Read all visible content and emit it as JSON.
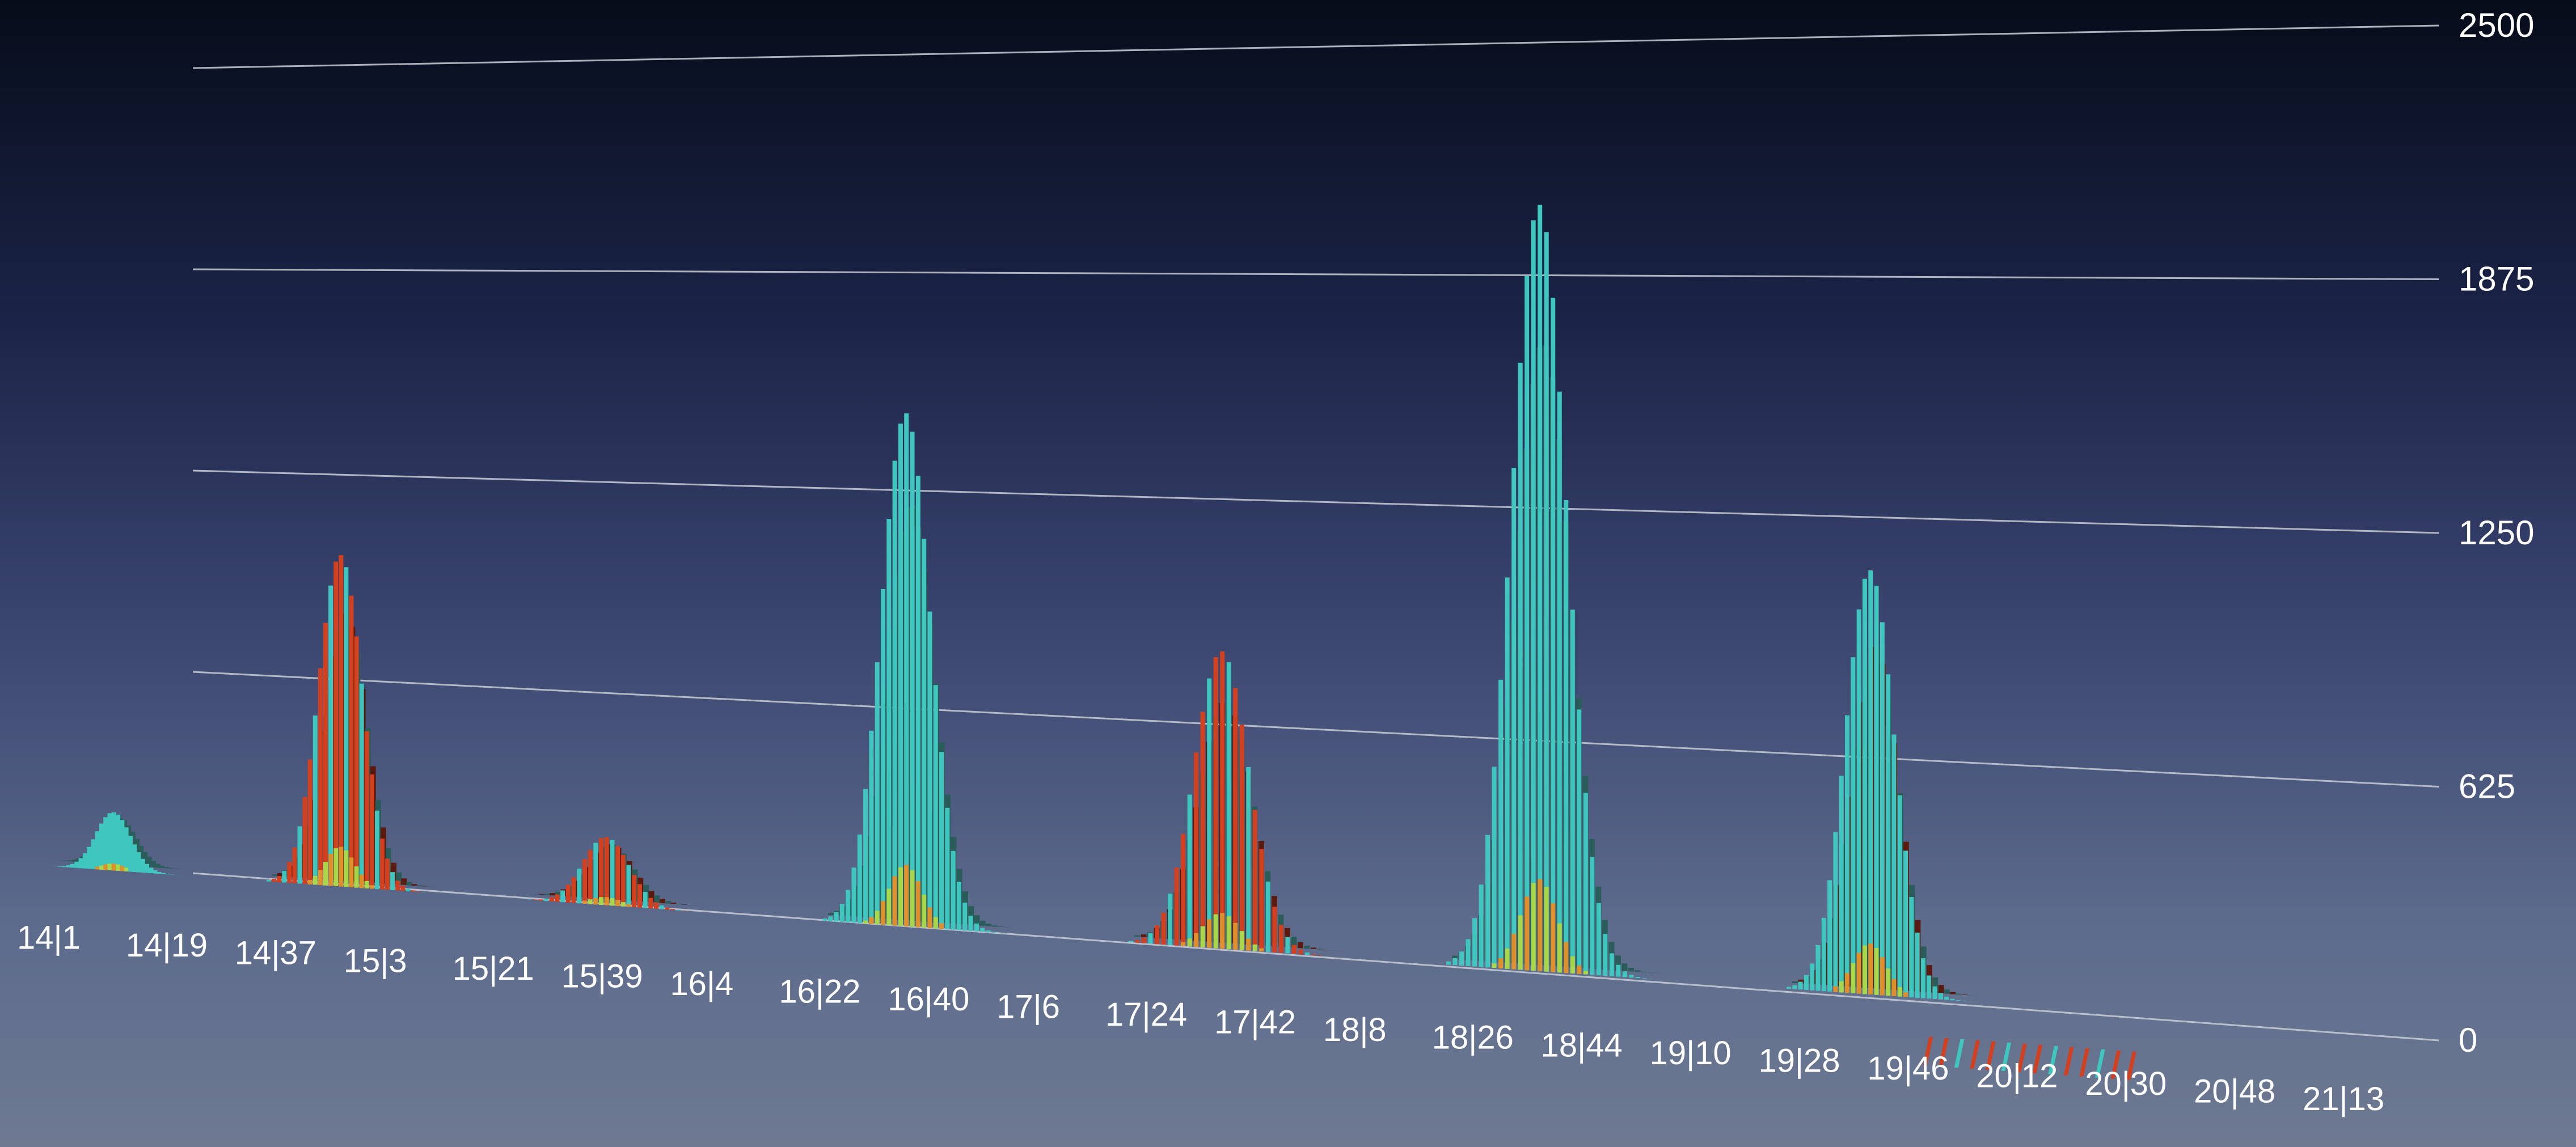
{
  "chart_data": {
    "type": "bar",
    "title": "",
    "xlabel": "",
    "ylabel": "",
    "ylim": [
      0,
      2500
    ],
    "yticks": [
      "0",
      "625",
      "1250",
      "1875",
      "2500"
    ],
    "grid": true,
    "x_tick_labels": [
      "14|1",
      "14|19",
      "14|37",
      "15|3",
      "15|21",
      "15|39",
      "16|4",
      "16|22",
      "16|40",
      "17|6",
      "17|24",
      "17|42",
      "18|8",
      "18|26",
      "18|44",
      "19|10",
      "19|28",
      "19|46",
      "20|12",
      "20|30",
      "20|48",
      "21|13"
    ],
    "clusters": [
      {
        "label": "14",
        "peak": 180,
        "scale_red": 0.05
      },
      {
        "label": "15",
        "peak": 1000,
        "scale_red": 1.25
      },
      {
        "label": "16",
        "peak": 200,
        "scale_red": 1.8
      },
      {
        "label": "17",
        "peak": 1460,
        "scale_red": 0.05
      },
      {
        "label": "18",
        "peak": 820,
        "scale_red": 1.5
      },
      {
        "label": "19",
        "peak": 2050,
        "scale_red": 0.02
      },
      {
        "label": "20",
        "peak": 1100,
        "scale_red": 0.6
      }
    ],
    "series_colors": {
      "teal": "#3fc6bf",
      "teal_dark": "#2a5c5a",
      "red": "#d2401f",
      "red_dark": "#5a1a10",
      "green": "#a8d84a",
      "orange": "#e0902a"
    }
  }
}
